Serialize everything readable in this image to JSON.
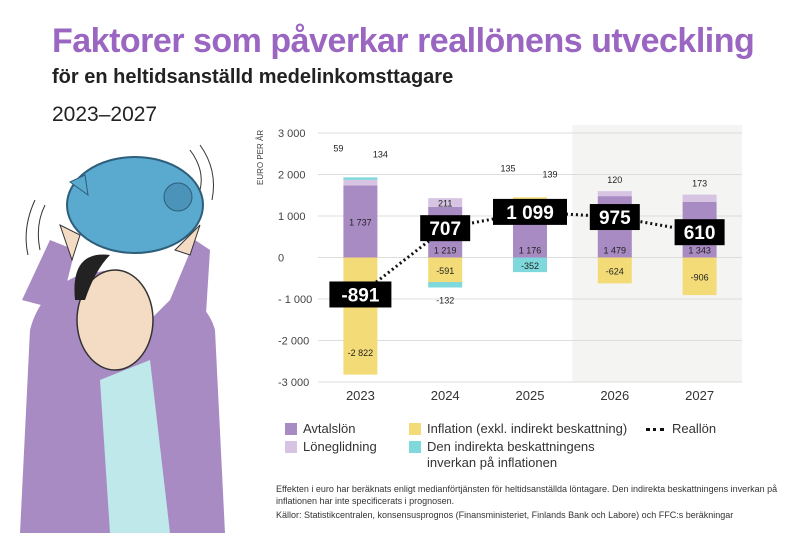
{
  "title": "Faktorer som påverkar reallönens utveckling",
  "subtitle": "för en heltidsanställd medelinkomsttagare",
  "period": "2023–2027",
  "colors": {
    "avtalslon": "#a98bc4",
    "loneglidning": "#d6c4e2",
    "inflation": "#f3dc78",
    "indirect": "#7fd8dc",
    "shade": "#f4f4f2"
  },
  "chart_data": {
    "type": "bar",
    "stacked": true,
    "ylabel": "EURO PER ÅR",
    "ylim": [
      -3000,
      3000
    ],
    "yticks": [
      3000,
      2000,
      1000,
      0,
      -1000,
      -2000,
      -3000
    ],
    "ytick_labels": [
      "3 000",
      "2 000",
      "1 000",
      "0",
      "- 1 000",
      "-2 000",
      "-3 000"
    ],
    "categories": [
      "2023",
      "2024",
      "2025",
      "2026",
      "2027"
    ],
    "forecast_shaded_from": "2026",
    "grid": true,
    "legend": "bottom",
    "series": [
      {
        "name": "Avtalslön",
        "values": [
          1737,
          1219,
          1176,
          1479,
          1343
        ],
        "labels": [
          "1 737",
          "1 219",
          "1 176",
          "1 479",
          "1 343"
        ]
      },
      {
        "name": "Löneglidning",
        "values": [
          134,
          211,
          139,
          120,
          173
        ],
        "labels": [
          "134",
          "211",
          "139",
          "120",
          "173"
        ]
      },
      {
        "name": "Inflation (exkl. indirekt beskattning)",
        "values": [
          -2822,
          -591,
          135,
          -624,
          -906
        ],
        "labels": [
          "-2 822",
          "-591",
          "135",
          "-624",
          "-906"
        ]
      },
      {
        "name": "Den indirekta beskattningens inverkan på inflationen",
        "values": [
          59,
          -132,
          -352,
          null,
          null
        ],
        "labels": [
          "59",
          "-132",
          "-352",
          "",
          ""
        ]
      },
      {
        "name": "Reallön",
        "type": "line",
        "style": "dotted",
        "values": [
          -891,
          707,
          1099,
          975,
          610
        ],
        "labels": [
          "-891",
          "707",
          "1 099",
          "975",
          "610"
        ]
      }
    ]
  },
  "legend": [
    "Avtalslön",
    "Löneglidning",
    "Inflation (exkl. indirekt beskattning)",
    "Den indirekta beskattningens inverkan på inflationen",
    "Reallön"
  ],
  "note": "Effekten i euro har beräknats enligt medianförtjänsten för heltidsanställda löntagare. Den indirekta beskattningens inverkan på inflationen har inte specificerats i prognosen.",
  "sources": "Källor: Statistikcentralen, konsensusprognos (Finansministeriet, Finlands Bank och Labore) och FFC:s beräkningar"
}
